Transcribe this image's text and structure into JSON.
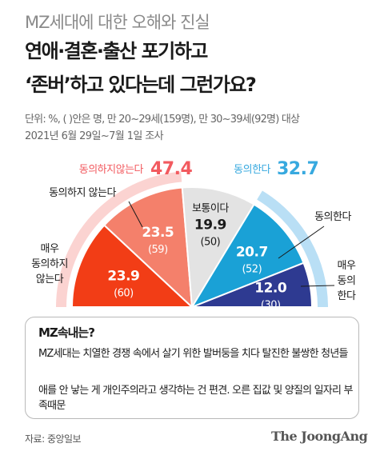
{
  "header": {
    "kicker": "MZ세대에 대한 오해와 진실",
    "title_line1": "연애·결혼·출산 포기하고",
    "title_line2": "‘존버’하고 있다는데 그런가요?",
    "note_line1": "단위: %, ( )안은 명, 만 20~29세(159명), 만 30~39세(92명) 대상",
    "note_line2": "2021년 6월 29일~7월 1일 조사"
  },
  "groups": {
    "disagree_label": "동의하지않는다",
    "disagree_total": "47.4",
    "agree_label": "동의한다",
    "agree_total": "32.7"
  },
  "colors": {
    "strong_disagree": "#f23d16",
    "disagree": "#f4806b",
    "neutral": "#e3e3e3",
    "agree": "#1aa1d6",
    "strong_agree": "#2e3a91",
    "disagree_arc": "#fbd3d1",
    "agree_arc": "#b9dff5",
    "disagree_text": "#f25a5f",
    "agree_text": "#37a9df"
  },
  "chart_data": {
    "type": "pie",
    "shape": "half-donut",
    "categories": [
      "매우 동의하지 않는다",
      "동의하지 않는다",
      "보통이다",
      "동의한다",
      "매우 동의한다"
    ],
    "values": [
      23.9,
      23.5,
      19.9,
      20.7,
      12.0
    ],
    "counts": [
      60,
      59,
      50,
      52,
      30
    ],
    "value_labels": [
      "23.9",
      "23.5",
      "19.9",
      "20.7",
      "12.0"
    ],
    "count_labels": [
      "(60)",
      "(59)",
      "(50)",
      "(52)",
      "(30)"
    ],
    "group_totals": [
      {
        "name": "동의하지않는다",
        "value": 47.4
      },
      {
        "name": "동의한다",
        "value": 32.7
      }
    ]
  },
  "callouts": {
    "disagree": "동의하지 않는다",
    "neutral": "보통이다",
    "agree": "동의한다",
    "strong_disagree_lines": [
      "매우",
      "동의하지",
      "않는다"
    ],
    "strong_agree_lines": [
      "매우",
      "동의",
      "한다"
    ]
  },
  "box": {
    "title": "MZ속내는?",
    "line1": "MZ세대는 치열한 경쟁 속에서 살기 위한 발버둥을 치다 탈진한 불쌍한 청년들",
    "line2": "애를 안 낳는 게 개인주의라고 생각하는 건 편견. 오른 집값 및 양질의 일자리 부족때문"
  },
  "footer": {
    "source": "자료: 중앙일보",
    "logo": "The JoongAng"
  }
}
